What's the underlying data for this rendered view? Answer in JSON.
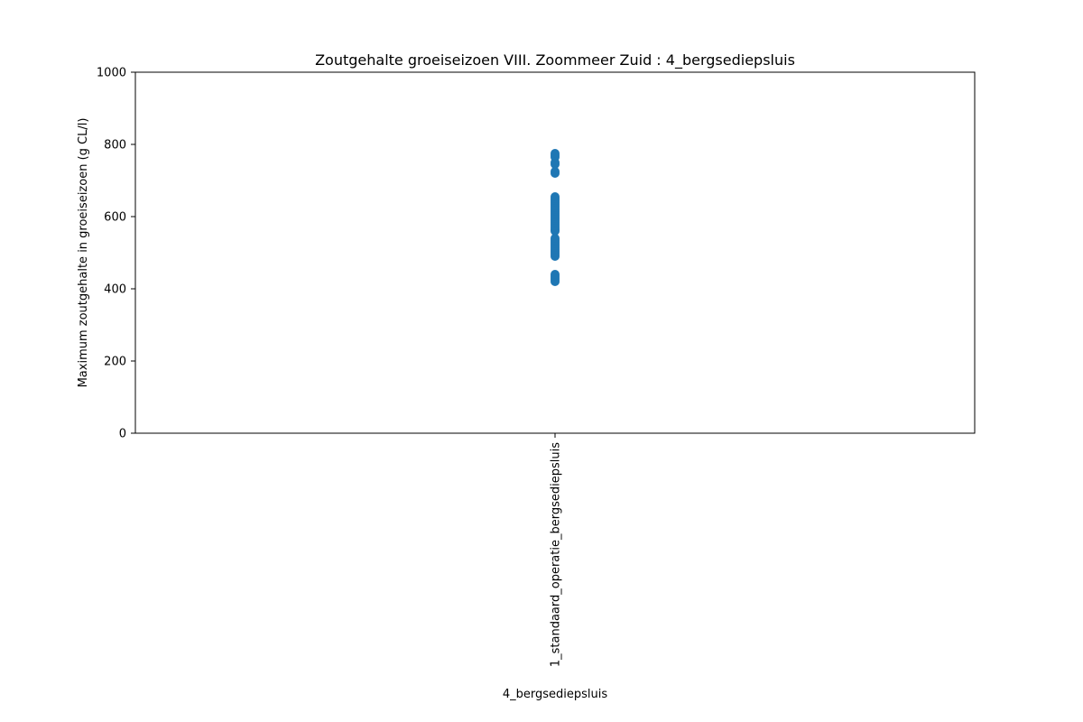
{
  "chart_data": {
    "type": "scatter",
    "title": "Zoutgehalte groeiseizoen VIII. Zoommeer Zuid : 4_bergsediepsluis",
    "xlabel": "4_bergsediepsluis",
    "ylabel": "Maximum zoutgehalte in groeiseizoen (g CL/l)",
    "categories": [
      "1_standaard_operatie_bergsediepsluis"
    ],
    "ylim": [
      0,
      1000
    ],
    "yticks": [
      "0",
      "200",
      "400",
      "600",
      "800",
      "1000"
    ],
    "grid": false,
    "marker_color": "#1f77b4",
    "series": [
      {
        "category": "1_standaard_operatie_bergsediepsluis",
        "values": [
          420,
          425,
          430,
          435,
          440,
          490,
          495,
          500,
          505,
          510,
          515,
          520,
          525,
          530,
          535,
          540,
          560,
          565,
          570,
          575,
          580,
          585,
          590,
          595,
          600,
          605,
          610,
          615,
          620,
          625,
          630,
          635,
          640,
          645,
          650,
          655,
          720,
          725,
          745,
          750,
          765,
          770,
          775
        ]
      }
    ]
  }
}
